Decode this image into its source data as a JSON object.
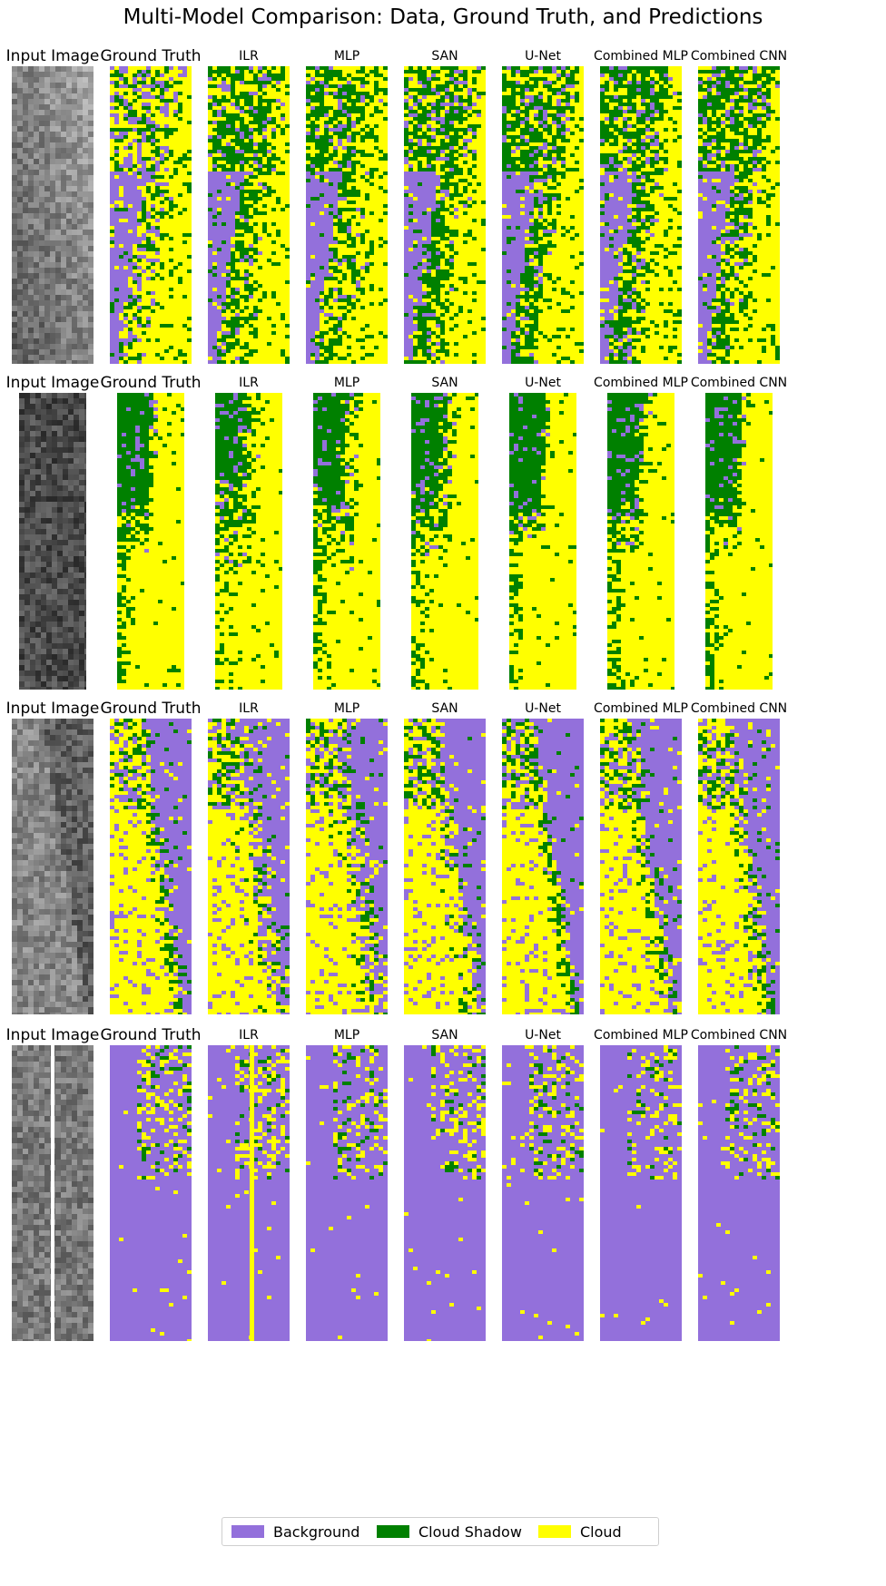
{
  "title": "Multi-Model Comparison: Data, Ground Truth, and Predictions",
  "column_titles": [
    "Input Image",
    "Ground Truth",
    "ILR",
    "MLP",
    "SAN",
    "U-Net",
    "Combined MLP",
    "Combined CNN"
  ],
  "colors": {
    "background": "#9370DB",
    "cloud_shadow": "#008000",
    "cloud": "#FFFF00",
    "input_gray": "#5a5a5a"
  },
  "legend": {
    "items": [
      {
        "label": "Background",
        "color": "#9370DB"
      },
      {
        "label": "Cloud Shadow",
        "color": "#008000"
      },
      {
        "label": "Cloud",
        "color": "#FFFF00"
      }
    ]
  },
  "rows": [
    {
      "row": 1,
      "dominant": [
        "Cloud Shadow",
        "Cloud",
        "Background"
      ]
    },
    {
      "row": 2,
      "dominant": [
        "Cloud",
        "Cloud Shadow"
      ]
    },
    {
      "row": 3,
      "dominant": [
        "Cloud",
        "Background",
        "Cloud Shadow"
      ]
    },
    {
      "row": 4,
      "dominant": [
        "Background",
        "Cloud",
        "Cloud Shadow"
      ]
    }
  ]
}
